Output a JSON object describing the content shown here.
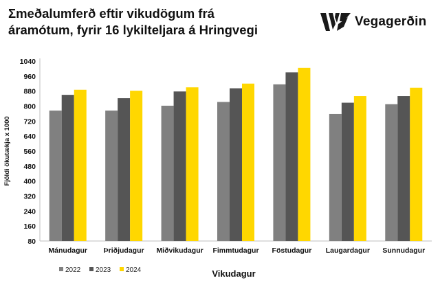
{
  "title": {
    "line1": "Σmeðalumferð eftir vikudögum frá",
    "line2": "áramótum, fyrir 16 lykilteljara á Hringvegi"
  },
  "logo": {
    "text": "Vegagerðin",
    "icon": "vegagerdin-logo-icon",
    "color": "#1a1a1a"
  },
  "chart_data": {
    "type": "bar",
    "xlabel": "Vikudagur",
    "ylabel": "Fjöldi ökutækja x 1000",
    "ylim": [
      80,
      1040
    ],
    "yticks": [
      80,
      160,
      240,
      320,
      400,
      480,
      560,
      640,
      720,
      800,
      880,
      960,
      1040
    ],
    "grid": false,
    "legend": "bottom-left",
    "categories": [
      "Mánudagur",
      "Þriðjudagur",
      "Miðvikudagur",
      "Fimmtudagur",
      "Föstudagur",
      "Laugardagur",
      "Sunnudagur"
    ],
    "series": [
      {
        "name": "2022",
        "color": "#808080",
        "values": [
          776,
          776,
          802,
          822,
          916,
          758,
          810
        ]
      },
      {
        "name": "2023",
        "color": "#555555",
        "values": [
          860,
          842,
          878,
          895,
          980,
          818,
          853
        ]
      },
      {
        "name": "2024",
        "color": "#ffd700",
        "values": [
          887,
          882,
          900,
          920,
          1004,
          853,
          898
        ]
      }
    ]
  }
}
